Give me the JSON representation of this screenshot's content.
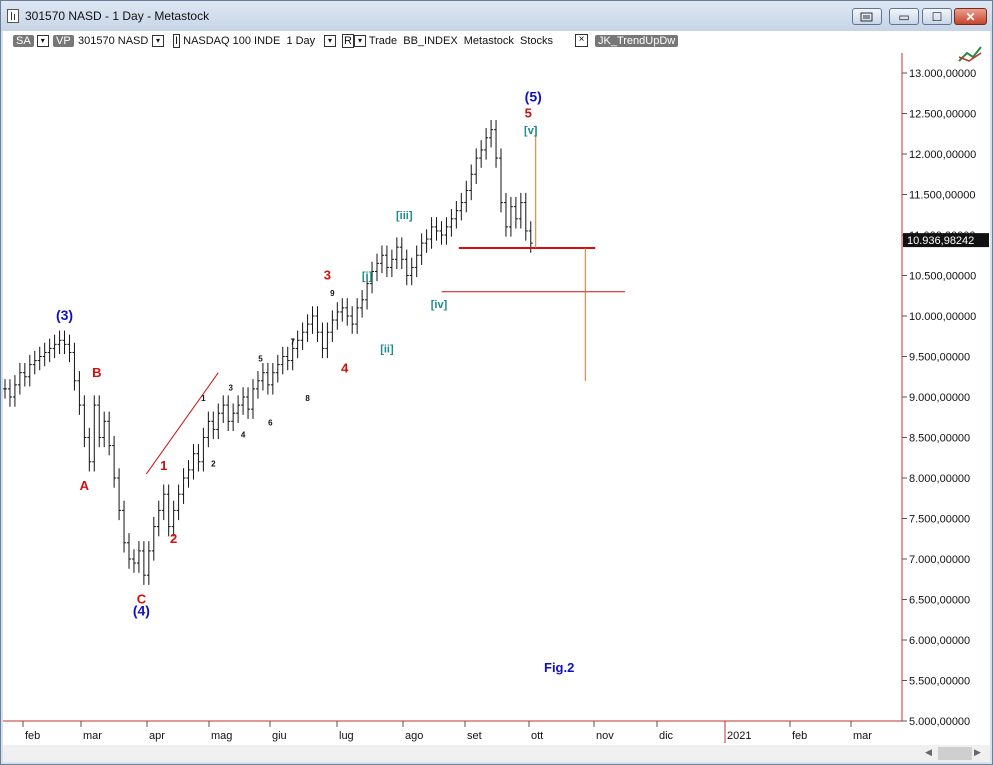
{
  "window": {
    "title": "301570 NASD - 1 Day - Metastock",
    "buttons": {
      "restore_icon": "restore-window-icon",
      "minimize": "▭",
      "maximize": "☐",
      "close": "✕"
    }
  },
  "toolbar": {
    "sa": "SA",
    "vp": "VP",
    "security": "301570 NASD",
    "bracket_i": "I",
    "index_line": "NASDAQ 100 INDE  1 Day",
    "bracket_r": "R",
    "trade_line": "Trade  BB_INDEX  Metastock  Stocks",
    "close_x": "×",
    "indicator": "JK_TrendUpDw",
    "dropdown_glyph": "▾"
  },
  "chart_data": {
    "type": "bar",
    "subtype": "ohlc",
    "yticks": [
      "13.000,00000",
      "12.500,00000",
      "12.000,00000",
      "11.500,00000",
      "11.000,00000",
      "10.500,00000",
      "10.000,00000",
      "9.500,00000",
      "9.000,00000",
      "8.500,00000",
      "8.000,00000",
      "7.500,00000",
      "7.000,00000",
      "6.500,00000",
      "6.000,00000",
      "5.500,00000",
      "5.000,00000"
    ],
    "xticks": [
      "feb",
      "mar",
      "apr",
      "mag",
      "giu",
      "lug",
      "ago",
      "set",
      "ott",
      "nov",
      "dic",
      "2021",
      "feb",
      "mar"
    ],
    "ylim": [
      5000,
      13000
    ],
    "last_price": "10.936,98242",
    "annotation": "Fig.2",
    "price_series": [
      [
        0,
        9100
      ],
      [
        2,
        9000
      ],
      [
        4,
        9150
      ],
      [
        6,
        9300
      ],
      [
        8,
        9250
      ],
      [
        10,
        9400
      ],
      [
        12,
        9450
      ],
      [
        14,
        9500
      ],
      [
        16,
        9550
      ],
      [
        18,
        9600
      ],
      [
        20,
        9650
      ],
      [
        22,
        9700
      ],
      [
        24,
        9650
      ],
      [
        26,
        9550
      ],
      [
        28,
        9200
      ],
      [
        30,
        8900
      ],
      [
        32,
        8500
      ],
      [
        34,
        8200
      ],
      [
        36,
        8900
      ],
      [
        38,
        8500
      ],
      [
        40,
        8700
      ],
      [
        42,
        8400
      ],
      [
        44,
        8000
      ],
      [
        46,
        7600
      ],
      [
        48,
        7200
      ],
      [
        50,
        7000
      ],
      [
        52,
        6950
      ],
      [
        54,
        7100
      ],
      [
        56,
        6800
      ],
      [
        58,
        7100
      ],
      [
        60,
        7400
      ],
      [
        62,
        7600
      ],
      [
        64,
        7800
      ],
      [
        66,
        7400
      ],
      [
        68,
        7600
      ],
      [
        70,
        7800
      ],
      [
        72,
        8000
      ],
      [
        74,
        8100
      ],
      [
        76,
        8300
      ],
      [
        78,
        8200
      ],
      [
        80,
        8500
      ],
      [
        82,
        8700
      ],
      [
        84,
        8600
      ],
      [
        86,
        8800
      ],
      [
        88,
        8900
      ],
      [
        90,
        8700
      ],
      [
        92,
        8800
      ],
      [
        94,
        8900
      ],
      [
        96,
        9000
      ],
      [
        98,
        8850
      ],
      [
        100,
        9100
      ],
      [
        102,
        9200
      ],
      [
        104,
        9300
      ],
      [
        106,
        9150
      ],
      [
        108,
        9300
      ],
      [
        110,
        9400
      ],
      [
        112,
        9500
      ],
      [
        114,
        9450
      ],
      [
        116,
        9600
      ],
      [
        118,
        9700
      ],
      [
        120,
        9800
      ],
      [
        122,
        9900
      ],
      [
        124,
        10000
      ],
      [
        126,
        9800
      ],
      [
        128,
        9600
      ],
      [
        130,
        9800
      ],
      [
        132,
        9950
      ],
      [
        134,
        10050
      ],
      [
        136,
        10100
      ],
      [
        138,
        10000
      ],
      [
        140,
        9900
      ],
      [
        142,
        10100
      ],
      [
        144,
        10200
      ],
      [
        146,
        10400
      ],
      [
        148,
        10550
      ],
      [
        150,
        10650
      ],
      [
        152,
        10750
      ],
      [
        154,
        10600
      ],
      [
        156,
        10700
      ],
      [
        158,
        10850
      ],
      [
        160,
        10700
      ],
      [
        162,
        10500
      ],
      [
        164,
        10600
      ],
      [
        166,
        10750
      ],
      [
        168,
        10900
      ],
      [
        170,
        10950
      ],
      [
        172,
        11100
      ],
      [
        174,
        11050
      ],
      [
        176,
        11000
      ],
      [
        178,
        11100
      ],
      [
        180,
        11200
      ],
      [
        182,
        11300
      ],
      [
        184,
        11400
      ],
      [
        186,
        11550
      ],
      [
        188,
        11750
      ],
      [
        190,
        11950
      ],
      [
        192,
        12050
      ],
      [
        194,
        12200
      ],
      [
        196,
        12300
      ],
      [
        198,
        11950
      ],
      [
        200,
        11400
      ],
      [
        202,
        11100
      ],
      [
        204,
        11350
      ],
      [
        206,
        11200
      ],
      [
        208,
        11400
      ],
      [
        210,
        11050
      ],
      [
        212,
        10900
      ]
    ],
    "wave_labels": [
      {
        "text": "(3)",
        "x": 24,
        "y": 9950,
        "color": "#1010c0",
        "size": 14
      },
      {
        "text": "B",
        "x": 37,
        "y": 9250,
        "color": "#d01010",
        "size": 13
      },
      {
        "text": "A",
        "x": 32,
        "y": 7850,
        "color": "#d01010",
        "size": 13
      },
      {
        "text": "C",
        "x": 55,
        "y": 6450,
        "color": "#d01010",
        "size": 13
      },
      {
        "text": "(4)",
        "x": 55,
        "y": 6300,
        "color": "#1010c0",
        "size": 14
      },
      {
        "text": "1",
        "x": 64,
        "y": 8100,
        "color": "#d01010",
        "size": 13
      },
      {
        "text": "2",
        "x": 68,
        "y": 7200,
        "color": "#d01010",
        "size": 13
      },
      {
        "text": "3",
        "x": 130,
        "y": 10450,
        "color": "#d01010",
        "size": 13
      },
      {
        "text": "4",
        "x": 137,
        "y": 9300,
        "color": "#d01010",
        "size": 13
      },
      {
        "text": "5",
        "x": 211,
        "y": 12450,
        "color": "#d01010",
        "size": 13
      },
      {
        "text": "(5)",
        "x": 213,
        "y": 12650,
        "color": "#1010c0",
        "size": 14
      },
      {
        "text": "[i]",
        "x": 146,
        "y": 10450,
        "color": "#1a8a8a",
        "size": 11
      },
      {
        "text": "[ii]",
        "x": 154,
        "y": 9550,
        "color": "#1a8a8a",
        "size": 11
      },
      {
        "text": "[iii]",
        "x": 161,
        "y": 11200,
        "color": "#1a8a8a",
        "size": 11
      },
      {
        "text": "[iv]",
        "x": 175,
        "y": 10100,
        "color": "#1a8a8a",
        "size": 11
      },
      {
        "text": "[v]",
        "x": 212,
        "y": 12250,
        "color": "#1a8a8a",
        "size": 11
      },
      {
        "text": "1",
        "x": 80,
        "y": 8950,
        "color": "#111111",
        "size": 8
      },
      {
        "text": "2",
        "x": 84,
        "y": 8140,
        "color": "#111111",
        "size": 8
      },
      {
        "text": "3",
        "x": 91,
        "y": 9080,
        "color": "#111111",
        "size": 8
      },
      {
        "text": "4",
        "x": 96,
        "y": 8500,
        "color": "#111111",
        "size": 8
      },
      {
        "text": "5",
        "x": 103,
        "y": 9440,
        "color": "#111111",
        "size": 8
      },
      {
        "text": "6",
        "x": 107,
        "y": 8650,
        "color": "#111111",
        "size": 8
      },
      {
        "text": "7",
        "x": 116,
        "y": 9650,
        "color": "#111111",
        "size": 8
      },
      {
        "text": "8",
        "x": 122,
        "y": 8950,
        "color": "#111111",
        "size": 8
      },
      {
        "text": "9",
        "x": 132,
        "y": 10250,
        "color": "#111111",
        "size": 8
      }
    ],
    "trend_lines": [
      {
        "x1": 57,
        "y1": 8050,
        "x2": 86,
        "y2": 9300,
        "color": "#d01010",
        "width": 1
      },
      {
        "x1": 183,
        "y1": 10840,
        "x2": 238,
        "y2": 10840,
        "color": "#d01010",
        "width": 2
      },
      {
        "x1": 176,
        "y1": 10300,
        "x2": 250,
        "y2": 10300,
        "color": "#d01010",
        "width": 1
      },
      {
        "x1": 214,
        "y1": 12350,
        "x2": 214,
        "y2": 10840,
        "color": "#e07020",
        "width": 1
      },
      {
        "x1": 234,
        "y1": 10840,
        "x2": 234,
        "y2": 9200,
        "color": "#e07020",
        "width": 1
      }
    ]
  }
}
